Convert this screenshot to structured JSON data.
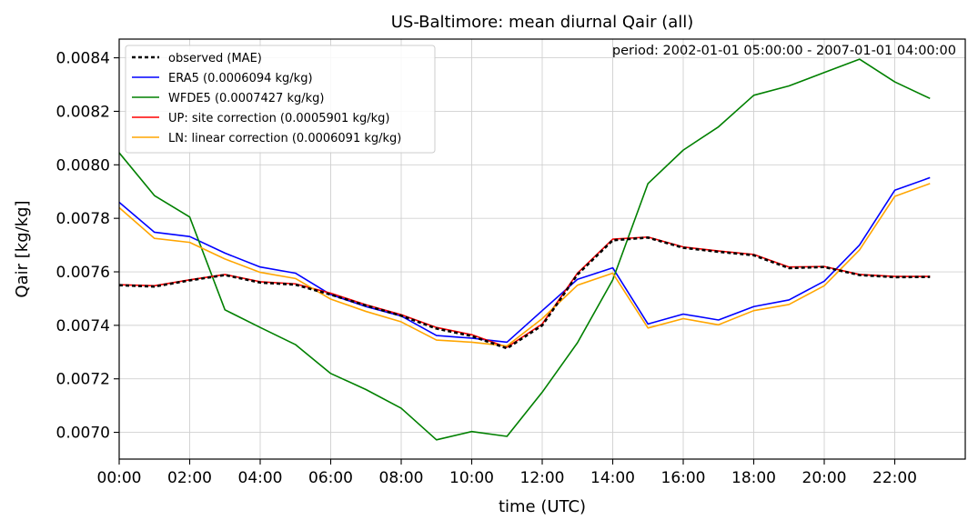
{
  "chart_data": {
    "type": "line",
    "title": "US-Baltimore: mean diurnal Qair (all)",
    "xlabel": "time (UTC)",
    "ylabel": "Qair [kg/kg]",
    "annotation": "period: 2002-01-01 05:00:00 - 2007-01-01 04:00:00",
    "xlim": [
      0,
      24
    ],
    "ylim": [
      0.0069,
      0.00847
    ],
    "grid": true,
    "legend_placement": "upper-left",
    "x": [
      0,
      1,
      2,
      3,
      4,
      5,
      6,
      7,
      8,
      9,
      10,
      11,
      12,
      13,
      14,
      15,
      16,
      17,
      18,
      19,
      20,
      21,
      22,
      23
    ],
    "x_ticks": [
      0,
      2,
      4,
      6,
      8,
      10,
      12,
      14,
      16,
      18,
      20,
      22
    ],
    "x_tick_labels": [
      "00:00",
      "02:00",
      "04:00",
      "06:00",
      "08:00",
      "10:00",
      "12:00",
      "14:00",
      "16:00",
      "18:00",
      "20:00",
      "22:00"
    ],
    "y_ticks": [
      0.007,
      0.0072,
      0.0074,
      0.0076,
      0.0078,
      0.008,
      0.0082,
      0.0084
    ],
    "y_tick_labels": [
      "0.0070",
      "0.0072",
      "0.0074",
      "0.0076",
      "0.0078",
      "0.0080",
      "0.0082",
      "0.0084"
    ],
    "series": [
      {
        "name": "ERA5 (0.0006094 kg/kg)",
        "color": "#0000ff",
        "dashed": false,
        "values": [
          0.00786,
          0.007748,
          0.007732,
          0.00767,
          0.007618,
          0.007595,
          0.007515,
          0.00747,
          0.007435,
          0.007362,
          0.007352,
          0.007337,
          0.007455,
          0.007572,
          0.007615,
          0.007405,
          0.007442,
          0.00742,
          0.00747,
          0.007495,
          0.007565,
          0.0077,
          0.007905,
          0.007952
        ]
      },
      {
        "name": "WFDE5 (0.0007427 kg/kg)",
        "color": "#008000",
        "dashed": false,
        "values": [
          0.008045,
          0.007885,
          0.007805,
          0.007458,
          0.007392,
          0.007328,
          0.00722,
          0.00716,
          0.00709,
          0.006972,
          0.007003,
          0.006985,
          0.00715,
          0.007335,
          0.00757,
          0.00793,
          0.008055,
          0.008142,
          0.00826,
          0.008295,
          0.008345,
          0.008395,
          0.00831,
          0.008248
        ]
      },
      {
        "name": "UP: site correction (0.0005901 kg/kg)",
        "color": "#ff0000",
        "dashed": false,
        "values": [
          0.007552,
          0.007548,
          0.00757,
          0.00759,
          0.007563,
          0.007555,
          0.00752,
          0.007477,
          0.00744,
          0.007392,
          0.007365,
          0.007318,
          0.007405,
          0.007595,
          0.007722,
          0.00773,
          0.007693,
          0.007678,
          0.007665,
          0.007618,
          0.00762,
          0.00759,
          0.007583,
          0.007583
        ]
      },
      {
        "name": "LN: linear correction (0.0006091 kg/kg)",
        "color": "#ffa500",
        "dashed": false,
        "values": [
          0.00784,
          0.007725,
          0.00771,
          0.007648,
          0.007598,
          0.007575,
          0.007498,
          0.007452,
          0.007413,
          0.007345,
          0.007337,
          0.007323,
          0.007425,
          0.00755,
          0.007595,
          0.00739,
          0.007425,
          0.007402,
          0.007455,
          0.007478,
          0.007548,
          0.007682,
          0.007882,
          0.00793
        ]
      },
      {
        "name": "observed (MAE)",
        "color": "#000000",
        "dashed": true,
        "values": [
          0.00755,
          0.007545,
          0.007568,
          0.007588,
          0.00756,
          0.007552,
          0.007515,
          0.007474,
          0.007436,
          0.007388,
          0.00736,
          0.007314,
          0.0074,
          0.00759,
          0.007718,
          0.007728,
          0.00769,
          0.007675,
          0.007662,
          0.007614,
          0.007618,
          0.007588,
          0.00758,
          0.007581
        ]
      }
    ],
    "legend_order": [
      4,
      0,
      1,
      2,
      3
    ]
  }
}
